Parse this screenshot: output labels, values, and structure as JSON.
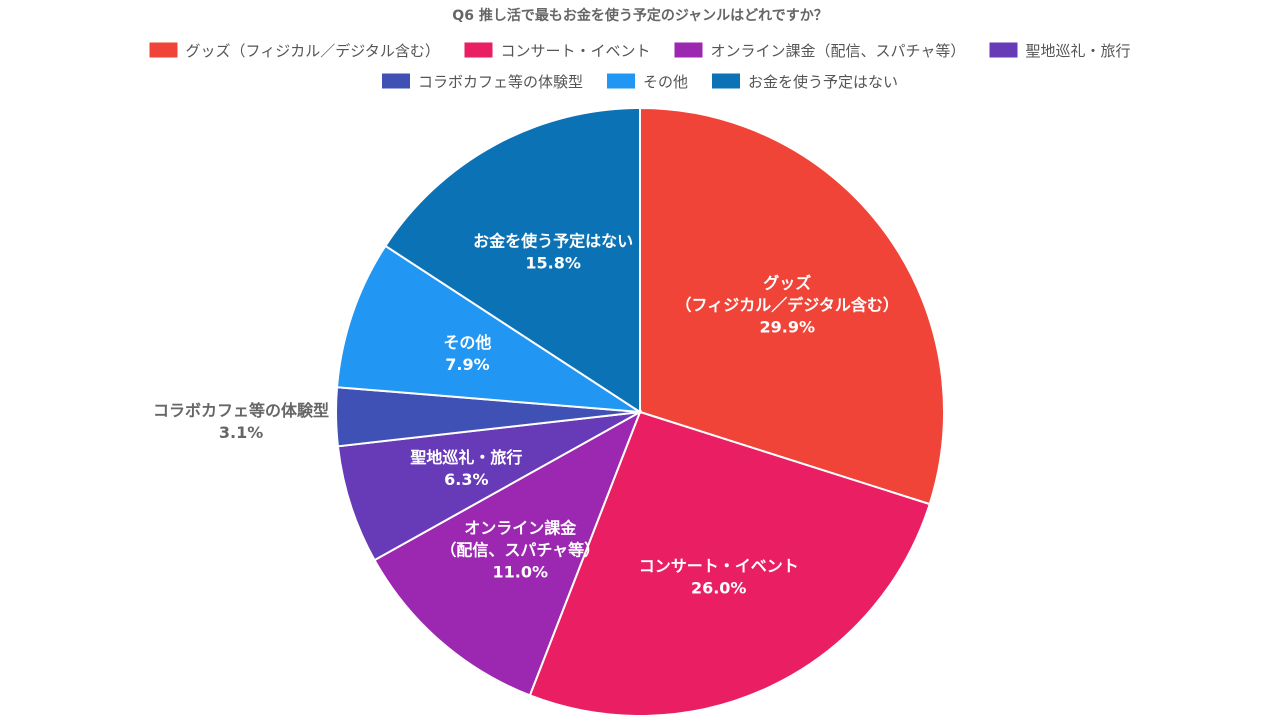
{
  "chart_data": {
    "type": "pie",
    "title": "Q6 推し活で最もお金を使う予定のジャンルはどれですか？",
    "legend_position": "top",
    "slices": [
      {
        "label": "グッズ（フィジカル／デジタル含む）",
        "label_lines": [
          "グッズ",
          "（フィジカル／デジタル含む）"
        ],
        "value": 29.9,
        "value_text": "29.9%",
        "color": "#F04438"
      },
      {
        "label": "コンサート・イベント",
        "label_lines": [
          "コンサート・イベント"
        ],
        "value": 26.0,
        "value_text": "26.0%",
        "color": "#E91E63"
      },
      {
        "label": "オンライン課金（配信、スパチャ等）",
        "label_lines": [
          "オンライン課金",
          "（配信、スパチャ等）"
        ],
        "value": 11.0,
        "value_text": "11.0%",
        "color": "#9C27B0"
      },
      {
        "label": "聖地巡礼・旅行",
        "label_lines": [
          "聖地巡礼・旅行"
        ],
        "value": 6.3,
        "value_text": "6.3%",
        "color": "#673AB7"
      },
      {
        "label": "コラボカフェ等の体験型",
        "label_lines": [
          "コラボカフェ等の体験型"
        ],
        "value": 3.1,
        "value_text": "3.1%",
        "color": "#3F51B5",
        "label_outside": true
      },
      {
        "label": "その他",
        "label_lines": [
          "その他"
        ],
        "value": 7.9,
        "value_text": "7.9%",
        "color": "#2196F3"
      },
      {
        "label": "お金を使う予定はない",
        "label_lines": [
          "お金を使う予定はない"
        ],
        "value": 15.8,
        "value_text": "15.8%",
        "color": "#0B72B5"
      }
    ]
  }
}
